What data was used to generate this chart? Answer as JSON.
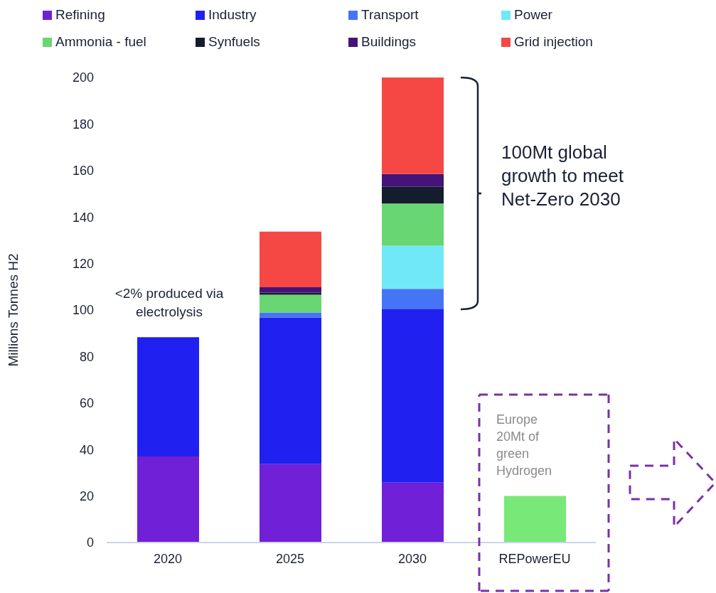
{
  "chart_data": {
    "type": "bar",
    "stacked": true,
    "categories": [
      "2020",
      "2025",
      "2030",
      "REPowerEU"
    ],
    "ylabel": "Millions Tonnes H2",
    "ylim": [
      0,
      200
    ],
    "yticks": [
      0,
      20,
      40,
      60,
      80,
      100,
      120,
      140,
      160,
      180,
      200
    ],
    "legend": "top",
    "series": [
      {
        "name": "Refining",
        "color": "#7020d6",
        "values": [
          37,
          33.7,
          25.8,
          null
        ]
      },
      {
        "name": "Industry",
        "color": "#2020f0",
        "values": [
          51.3,
          63.1,
          74.7,
          null
        ]
      },
      {
        "name": "Transport",
        "color": "#4575f5",
        "values": [
          null,
          2.1,
          8.6,
          null
        ]
      },
      {
        "name": "Power",
        "color": "#70e8f8",
        "values": [
          null,
          null,
          18.6,
          null
        ]
      },
      {
        "name": "Ammonia - fuel",
        "color": "#68d672",
        "values": [
          null,
          7.7,
          18.1,
          null
        ]
      },
      {
        "name": "Synfuels",
        "color": "#141c2e",
        "values": [
          null,
          0.9,
          7.2,
          null
        ]
      },
      {
        "name": "Buildings",
        "color": "#441478",
        "values": [
          null,
          2.3,
          5.5,
          null
        ]
      },
      {
        "name": "Grid injection",
        "color": "#f54844",
        "values": [
          null,
          23.9,
          41.5,
          null
        ]
      },
      {
        "color": "#78e878",
        "values": [
          null,
          null,
          null,
          20
        ]
      }
    ],
    "annotations": [
      "<2% produced via electrolysis",
      "100Mt global growth to meet Net-Zero 2030",
      "Europe 20Mt of green Hydrogen"
    ]
  }
}
